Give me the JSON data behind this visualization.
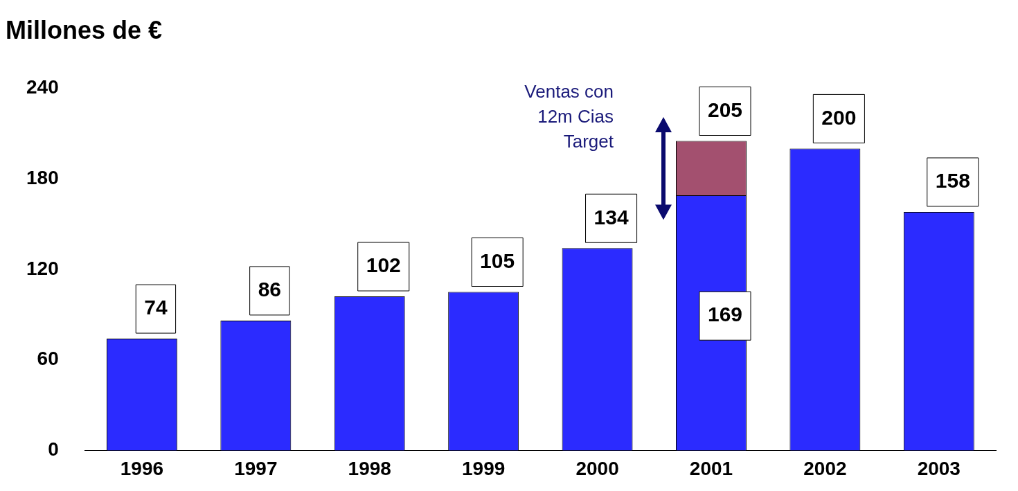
{
  "chart_data": {
    "type": "bar",
    "title": "Millones de €",
    "categories": [
      "1996",
      "1997",
      "1998",
      "1999",
      "2000",
      "2001",
      "2002",
      "2003"
    ],
    "stacked": true,
    "series": [
      {
        "color": "#2b2bff",
        "values": [
          74,
          86,
          102,
          105,
          134,
          169,
          200,
          158
        ],
        "value_labels": [
          "74",
          "86",
          "102",
          "105",
          "134",
          "169",
          "200",
          "158"
        ]
      },
      {
        "color": "#a3506f",
        "values": [
          null,
          null,
          null,
          null,
          null,
          36,
          null,
          null
        ]
      }
    ],
    "ylim": [
      0,
      240
    ],
    "yticks": [
      0,
      60,
      120,
      180,
      240
    ],
    "grid": false,
    "legend": false,
    "totals": [
      null,
      null,
      null,
      null,
      null,
      "205",
      null,
      null
    ],
    "annotations": [
      "Ventas con 12m Cias Target"
    ]
  }
}
